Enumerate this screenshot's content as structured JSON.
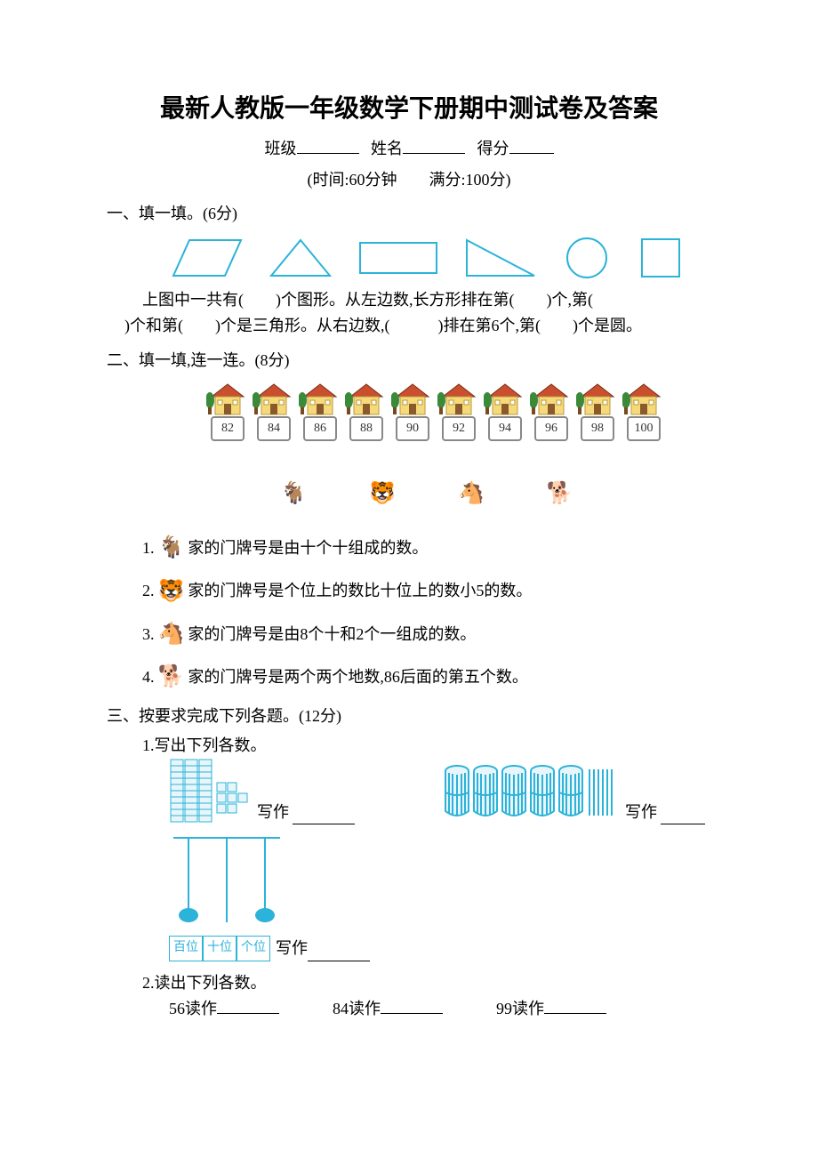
{
  "title": "最新人教版一年级数学下册期中测试卷及答案",
  "header": {
    "class_label": "班级",
    "name_label": "姓名",
    "score_label": "得分",
    "time_text": "(时间:60分钟　　满分:100分)"
  },
  "section1": {
    "heading": "一、填一填。(6分)",
    "shapes": {
      "stroke_color": "#2bb3d9",
      "items": [
        "parallelogram",
        "triangle",
        "rectangle",
        "right-triangle",
        "circle",
        "square"
      ]
    },
    "line1": "上图中一共有(　　)个图形。从左边数,长方形排在第(　　)个,第(　　",
    "line2": ")个和第(　　)个是三角形。从右边数,(　　　)排在第6个,第(　　)个是圆。"
  },
  "section2": {
    "heading": "二、填一填,连一连。(8分)",
    "houses": [
      "82",
      "84",
      "86",
      "88",
      "90",
      "92",
      "94",
      "96",
      "98",
      "100"
    ],
    "house_colors": {
      "roof": "#c94f2f",
      "wall": "#f6d97a",
      "tree": "#3a8a3a",
      "trunk": "#7a4a1f",
      "border": "#888"
    },
    "animals": [
      "goat",
      "tiger",
      "horse",
      "dog"
    ],
    "clues": [
      {
        "num": "1.",
        "animal": "goat",
        "text": "家的门牌号是由十个十组成的数。"
      },
      {
        "num": "2.",
        "animal": "tiger",
        "text": "家的门牌号是个位上的数比十位上的数小5的数。"
      },
      {
        "num": "3.",
        "animal": "horse",
        "text": "家的门牌号是由8个十和2个一组成的数。"
      },
      {
        "num": "4.",
        "animal": "dog",
        "text": "家的门牌号是两个两个地数,86后面的第五个数。"
      }
    ]
  },
  "section3": {
    "heading": "三、按要求完成下列各题。(12分)",
    "q1_label": "1.写出下列各数。",
    "write_label": "写作",
    "place_labels": [
      "百位",
      "十位",
      "个位"
    ],
    "q2_label": "2.读出下列各数。",
    "read_items": [
      {
        "n": "56",
        "label": "读作"
      },
      {
        "n": "84",
        "label": "读作"
      },
      {
        "n": "99",
        "label": "读作"
      }
    ]
  },
  "colors": {
    "cyan": "#2bb3d9",
    "text": "#000000",
    "background": "#ffffff"
  }
}
